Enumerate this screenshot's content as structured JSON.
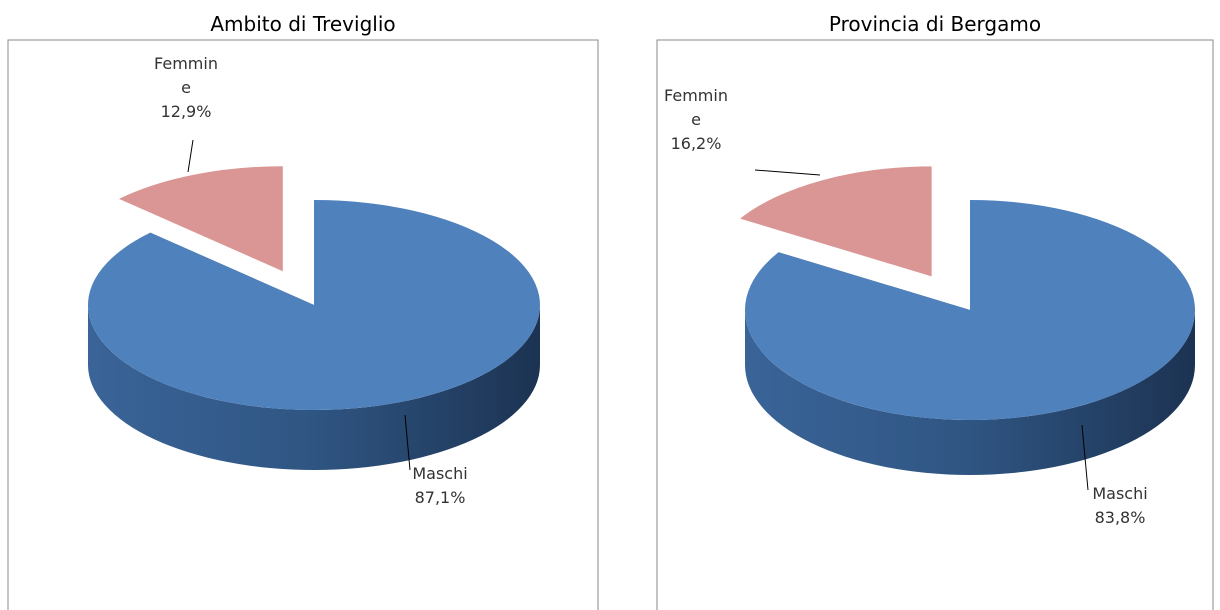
{
  "chart_data": [
    {
      "type": "pie",
      "title": "Ambito di Treviglio",
      "categories": [
        "Maschi",
        "Femmine"
      ],
      "values": [
        87.1,
        12.9
      ],
      "value_labels": [
        "87,1%",
        "12,9%"
      ],
      "colors": [
        "#4f81bd",
        "#d99694"
      ]
    },
    {
      "type": "pie",
      "title": "Provincia di Bergamo",
      "categories": [
        "Maschi",
        "Femmine"
      ],
      "values": [
        83.8,
        16.2
      ],
      "value_labels": [
        "83,8%",
        "16,2%"
      ],
      "colors": [
        "#4f81bd",
        "#d99694"
      ]
    }
  ]
}
